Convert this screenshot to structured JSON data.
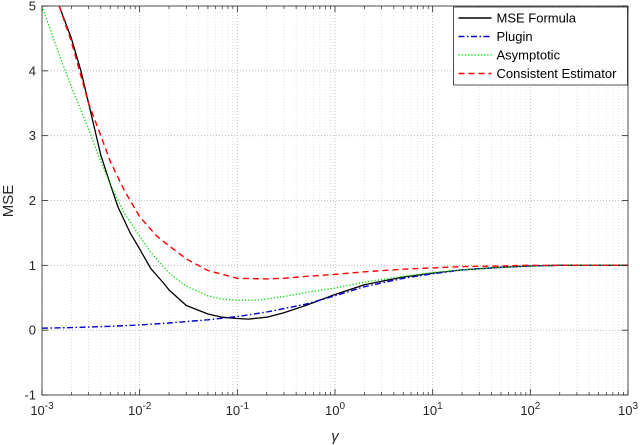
{
  "chart_data": {
    "type": "line",
    "title": "",
    "xlabel": "γ",
    "ylabel": "MSE",
    "xscale": "log",
    "xlim": [
      0.001,
      1000
    ],
    "ylim": [
      -1,
      5
    ],
    "grid": "on (major and minor, dotted)",
    "legend_position": "top-right",
    "x_ticks": [
      {
        "value": 0.001,
        "base": "10",
        "exp": "-3"
      },
      {
        "value": 0.01,
        "base": "10",
        "exp": "-2"
      },
      {
        "value": 0.1,
        "base": "10",
        "exp": "-1"
      },
      {
        "value": 1,
        "base": "10",
        "exp": "0"
      },
      {
        "value": 10,
        "base": "10",
        "exp": "1"
      },
      {
        "value": 100,
        "base": "10",
        "exp": "2"
      },
      {
        "value": 1000,
        "base": "10",
        "exp": "3"
      }
    ],
    "y_ticks": [
      {
        "value": -1,
        "label": "-1"
      },
      {
        "value": 0,
        "label": "0"
      },
      {
        "value": 1,
        "label": "1"
      },
      {
        "value": 2,
        "label": "2"
      },
      {
        "value": 3,
        "label": "3"
      },
      {
        "value": 4,
        "label": "4"
      },
      {
        "value": 5,
        "label": "5"
      }
    ],
    "series": [
      {
        "name": "MSE Formula",
        "color": "#000000",
        "dash": "solid",
        "x": [
          0.0015,
          0.002,
          0.0025,
          0.003,
          0.004,
          0.005,
          0.006,
          0.008,
          0.01,
          0.013,
          0.017,
          0.02,
          0.03,
          0.05,
          0.07,
          0.1,
          0.13,
          0.2,
          0.3,
          0.5,
          1,
          2,
          5,
          10,
          20,
          50,
          100,
          200,
          500,
          1000
        ],
        "y": [
          5.0,
          4.5,
          4.0,
          3.5,
          2.7,
          2.25,
          1.9,
          1.5,
          1.25,
          0.95,
          0.75,
          0.62,
          0.38,
          0.25,
          0.2,
          0.18,
          0.17,
          0.2,
          0.27,
          0.38,
          0.55,
          0.7,
          0.82,
          0.88,
          0.93,
          0.97,
          0.99,
          1.0,
          1.0,
          1.0
        ]
      },
      {
        "name": "Plugin",
        "color": "#0000cc",
        "dash": "dashdot",
        "x": [
          0.001,
          0.002,
          0.005,
          0.01,
          0.02,
          0.05,
          0.1,
          0.2,
          0.5,
          1,
          2,
          5,
          10,
          20,
          50,
          100,
          200,
          500,
          1000
        ],
        "y": [
          0.03,
          0.04,
          0.06,
          0.08,
          0.11,
          0.16,
          0.21,
          0.28,
          0.4,
          0.53,
          0.67,
          0.8,
          0.87,
          0.93,
          0.97,
          0.99,
          1.0,
          1.0,
          1.0
        ]
      },
      {
        "name": "Asymptotic",
        "color": "#00dd00",
        "dash": "dotted",
        "x": [
          0.001,
          0.0015,
          0.002,
          0.003,
          0.004,
          0.005,
          0.007,
          0.01,
          0.013,
          0.017,
          0.02,
          0.03,
          0.05,
          0.07,
          0.1,
          0.15,
          0.2,
          0.3,
          0.5,
          1,
          2,
          5,
          10,
          20,
          50,
          100,
          200,
          500,
          1000
        ],
        "y": [
          5.0,
          4.25,
          3.75,
          3.1,
          2.6,
          2.25,
          1.8,
          1.45,
          1.2,
          1.0,
          0.88,
          0.68,
          0.53,
          0.48,
          0.46,
          0.46,
          0.48,
          0.52,
          0.58,
          0.65,
          0.74,
          0.83,
          0.89,
          0.93,
          0.97,
          0.99,
          1.0,
          1.0,
          1.0
        ]
      },
      {
        "name": "Consistent Estimator",
        "color": "#ff0000",
        "dash": "dashed",
        "x": [
          0.0015,
          0.002,
          0.003,
          0.004,
          0.005,
          0.007,
          0.01,
          0.015,
          0.02,
          0.03,
          0.05,
          0.1,
          0.2,
          0.3,
          0.5,
          1,
          2,
          5,
          10,
          20,
          50,
          100,
          200,
          500,
          1000
        ],
        "y": [
          5.0,
          4.45,
          3.5,
          3.0,
          2.6,
          2.15,
          1.75,
          1.45,
          1.3,
          1.1,
          0.92,
          0.8,
          0.79,
          0.8,
          0.83,
          0.86,
          0.9,
          0.94,
          0.96,
          0.98,
          0.99,
          1.0,
          1.0,
          1.0,
          1.0
        ]
      }
    ]
  }
}
